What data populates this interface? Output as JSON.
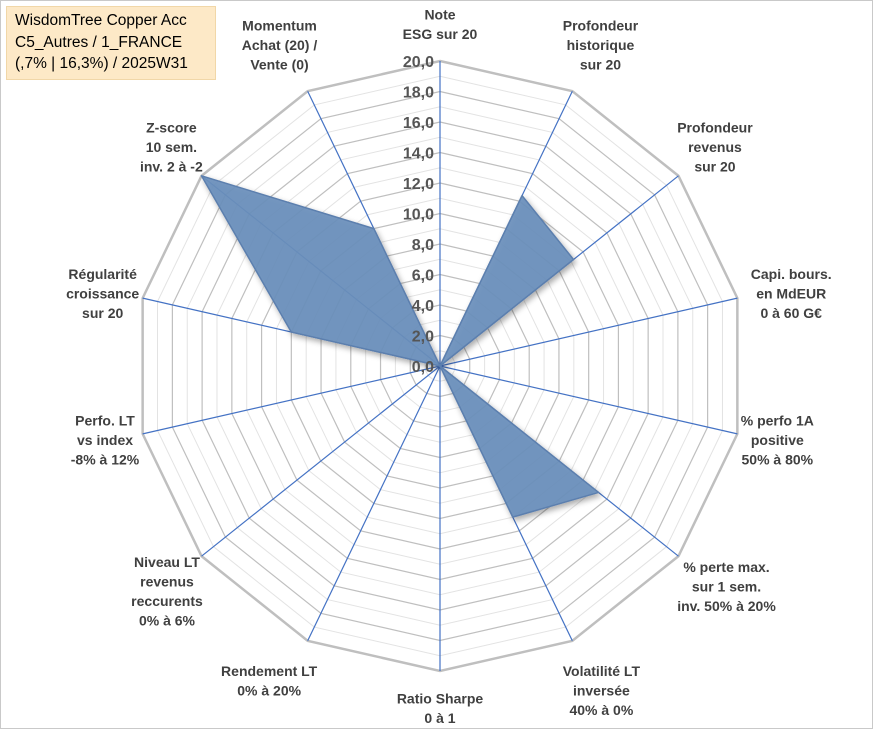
{
  "title": {
    "line1": "WisdomTree Copper Acc",
    "line2": "C5_Autres / 1_FRANCE",
    "line3": "(,7% | 16,3%) / 2025W31"
  },
  "chart_data": {
    "type": "radar",
    "rlim": [
      0,
      20
    ],
    "rticks": [
      "0,0",
      "2,0",
      "4,0",
      "6,0",
      "8,0",
      "10,0",
      "12,0",
      "14,0",
      "16,0",
      "18,0",
      "20,0"
    ],
    "grid": true,
    "axes": [
      [
        "Note",
        "ESG sur 20"
      ],
      [
        "Profondeur",
        "historique",
        "sur 20"
      ],
      [
        "Profondeur",
        "revenus",
        "sur 20"
      ],
      [
        "Capi. bours.",
        "en MdEUR",
        "0 à 60 G€"
      ],
      [
        "% perfo 1A",
        "positive",
        "50% à 80%"
      ],
      [
        "% perte max.",
        "sur 1 sem.",
        "inv. 50% à 20%"
      ],
      [
        "Volatilité LT",
        "inversée",
        "40% à 0%"
      ],
      [
        "Ratio Sharpe",
        "0 à 1"
      ],
      [
        "Rendement LT",
        "0% à 20%"
      ],
      [
        "Niveau LT",
        "revenus",
        "reccurents",
        "0% à 6%"
      ],
      [
        "Perfo. LT",
        "vs index",
        "-8% à 12%"
      ],
      [
        "Régularité",
        "croissance",
        "sur 20"
      ],
      [
        "Z-score",
        "10 sem.",
        "inv. 2 à -2"
      ],
      [
        "Momentum",
        "Achat (20) /",
        "Vente (0)"
      ]
    ],
    "values": [
      0,
      12.4,
      11.2,
      0,
      0,
      13.3,
      11.0,
      0,
      0,
      0,
      0,
      10.0,
      20.0,
      10.0
    ],
    "series_color": "#5b7fae",
    "series_fill": "#6a8fbc",
    "grid_color": "#bfbfbf",
    "spoke_color": "#4472c4"
  }
}
